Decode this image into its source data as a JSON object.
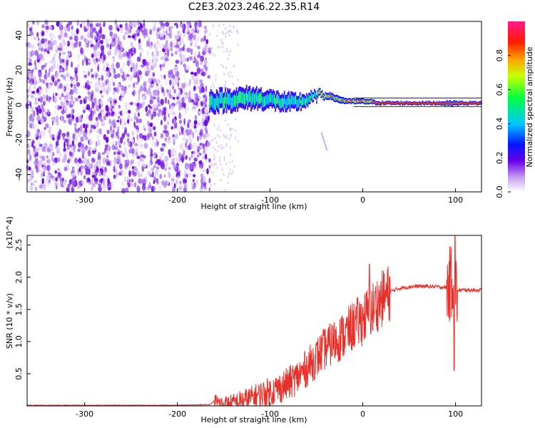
{
  "title": "C2E3.2023.246.22.35.R14",
  "colorbar": {
    "label": "Normalized spectral amplitude",
    "ticks": [
      "0.0",
      "0.2",
      "0.4",
      "0.6",
      "0.8"
    ],
    "tick_values": [
      0.0,
      0.2,
      0.4,
      0.6,
      0.8
    ],
    "range": [
      0,
      1
    ]
  },
  "chart_data": [
    {
      "type": "heatmap",
      "xlabel": "Height of straight line (km)",
      "ylabel": "Frequency (Hz)",
      "xlim": [
        -362,
        128
      ],
      "ylim": [
        -50,
        48
      ],
      "xticks": [
        -300,
        -200,
        -100,
        0,
        100
      ],
      "xtick_labels": [
        "-300",
        "-200",
        "-100",
        "0",
        "100"
      ],
      "yticks": [
        -40,
        -20,
        0,
        20,
        40
      ],
      "ytick_labels": [
        "-40",
        "-20",
        "0",
        "20",
        "40"
      ],
      "noise_region_x": [
        -362,
        -165
      ],
      "signal_track": {
        "x": [
          -165,
          -140,
          -120,
          -100,
          -80,
          -65,
          -55,
          -45,
          -35,
          -25,
          -15,
          -5,
          5,
          20,
          40,
          60,
          80,
          95,
          110,
          128
        ],
        "freq": [
          2,
          3,
          4,
          3,
          1,
          2,
          4,
          6,
          5,
          3,
          2,
          2,
          2,
          1,
          1,
          1,
          1,
          1,
          1,
          1
        ],
        "width": [
          6,
          6,
          6,
          5,
          5,
          4,
          3,
          2,
          2,
          2,
          1.5,
          1.5,
          1.5,
          1,
          1,
          1,
          1,
          1.5,
          1,
          1
        ]
      }
    },
    {
      "type": "line",
      "xlabel": "Height of straight line (km)",
      "ylabel": "SNR (10 * v/v)",
      "multiplier": "(x10^4)",
      "xlim": [
        -362,
        128
      ],
      "ylim": [
        0,
        2.65
      ],
      "xticks": [
        -300,
        -200,
        -100,
        0,
        100
      ],
      "xtick_labels": [
        "-300",
        "-200",
        "-100",
        "0",
        "100"
      ],
      "yticks": [
        0.5,
        1.0,
        1.5,
        2.0,
        2.5
      ],
      "ytick_labels": [
        "0.5",
        "1.0",
        "1.5",
        "2.0",
        "2.5"
      ],
      "color": "#e8302a",
      "series": [
        {
          "x": [
            -362,
            -300,
            -250,
            -200,
            -165,
            -160,
            -155,
            -150,
            -140,
            -130,
            -120,
            -110,
            -100,
            -90,
            -80,
            -70,
            -60,
            -50,
            -40,
            -30,
            -20,
            -10,
            0,
            10,
            20,
            30,
            40,
            50,
            60,
            70,
            80,
            90,
            95,
            98,
            100,
            102,
            105,
            110,
            128
          ],
          "values": [
            0.01,
            0.01,
            0.01,
            0.01,
            0.02,
            0.08,
            0.04,
            0.02,
            0.04,
            0.08,
            0.12,
            0.18,
            0.22,
            0.28,
            0.35,
            0.45,
            0.6,
            0.75,
            0.9,
            1.0,
            1.1,
            1.25,
            1.35,
            1.5,
            1.65,
            1.78,
            1.83,
            1.85,
            1.86,
            1.86,
            1.85,
            1.84,
            1.9,
            2.1,
            1.8,
            1.78,
            1.8,
            1.8,
            1.8
          ]
        }
      ]
    }
  ]
}
